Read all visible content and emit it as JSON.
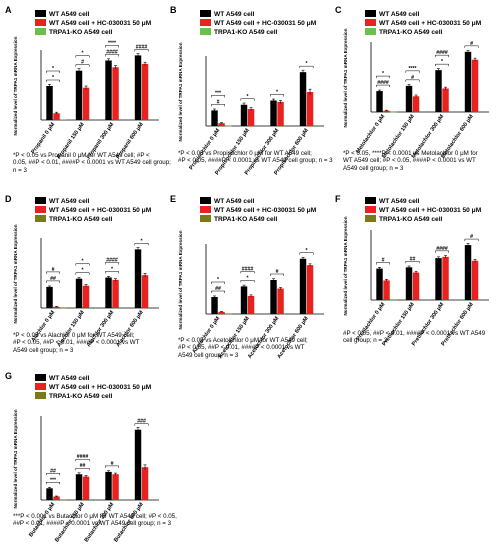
{
  "colors": {
    "wt": "#000000",
    "hc": "#e8231f",
    "ko": "#6cc04a",
    "ko_dark": "#7a7a1a"
  },
  "chart_data": [
    {
      "panel": "A",
      "type": "bar",
      "ylabel": "Normalized level of TRPA1 mRNA Expression",
      "categories": [
        "Propanil 0 μM",
        "Propanil 150 μM",
        "Propanil 300 μM",
        "Propanil 600 μM"
      ],
      "series": [
        {
          "name": "WT A549 cell",
          "color": "wt",
          "values": [
            1.0,
            1.45,
            1.75,
            1.9
          ],
          "errors": [
            0.05,
            0.06,
            0.05,
            0.05
          ]
        },
        {
          "name": "WT A549 cell + HC-030031 50 μM",
          "color": "hc",
          "values": [
            0.2,
            0.95,
            1.55,
            1.65
          ],
          "errors": [
            0.03,
            0.05,
            0.05,
            0.05
          ]
        },
        {
          "name": "TRPA1-KO A549 cell",
          "color": "ko",
          "values": [
            0.02,
            0,
            0,
            0
          ],
          "errors": [
            0,
            0,
            0,
            0
          ]
        }
      ],
      "ylim": [
        0,
        2.0
      ],
      "annotations": [
        "*",
        "#",
        "####",
        "####",
        "*",
        "*",
        "****"
      ],
      "caption": [
        "*P < 0.05 vs Propanil 0 μM for WT A549 cell; #P <",
        "0.05, ##P < 0.01, ####P < 0.0001 vs WT A549 cell group;",
        "n = 3"
      ]
    },
    {
      "panel": "B",
      "type": "bar",
      "ylabel": "Normalized level of TRPA1 mRNA Expression",
      "categories": [
        "Propisochlor 0 μM",
        "Propisochlor 150 μM",
        "Propisochlor 300 μM",
        "Propisochlor 600 μM"
      ],
      "series": [
        {
          "name": "WT A549 cell",
          "color": "wt",
          "values": [
            0.55,
            0.75,
            0.9,
            1.9
          ],
          "errors": [
            0.05,
            0.06,
            0.05,
            0.07
          ]
        },
        {
          "name": "WT A549 cell + HC-030031 50 μM",
          "color": "hc",
          "values": [
            0.1,
            0.6,
            0.85,
            1.2
          ],
          "errors": [
            0.02,
            0.05,
            0.05,
            0.1
          ]
        },
        {
          "name": "TRPA1-KO A549 cell",
          "color": "ko",
          "values": [
            0.01,
            0,
            0,
            0
          ],
          "errors": [
            0,
            0,
            0,
            0
          ]
        }
      ],
      "ylim": [
        0,
        2.4
      ],
      "annotations": [
        "#",
        "*",
        "*",
        "*",
        "***"
      ],
      "caption": [
        "*P < 0.05 vs Propisochlor 0 μM for WT A549 cell;",
        "#P < 0.05, ####P < 0.0001 vs WT A549 cell group; n = 3"
      ]
    },
    {
      "panel": "C",
      "type": "bar",
      "ylabel": "Normalized level of TRPA1 mRNA Expression",
      "categories": [
        "Metolachlor 0 μM",
        "Metolachlor 150 μM",
        "Metolachlor 300 μM",
        "Metolachlor 600 μM"
      ],
      "series": [
        {
          "name": "WT A549 cell",
          "color": "wt",
          "values": [
            0.8,
            1.0,
            1.6,
            2.3
          ],
          "errors": [
            0.04,
            0.05,
            0.06,
            0.05
          ]
        },
        {
          "name": "WT A549 cell + HC-030031 50 μM",
          "color": "hc",
          "values": [
            0.05,
            0.6,
            0.9,
            2.0
          ],
          "errors": [
            0.02,
            0.05,
            0.05,
            0.06
          ]
        },
        {
          "name": "TRPA1-KO A549 cell",
          "color": "ko",
          "values": [
            0.01,
            0,
            0,
            0
          ],
          "errors": [
            0,
            0,
            0,
            0
          ]
        }
      ],
      "ylim": [
        0,
        2.6
      ],
      "annotations": [
        "####",
        "#",
        "*",
        "#",
        "*",
        "****",
        "####"
      ],
      "caption": [
        "*P < 0.05, ****P < 0.0001 vs Metolachlor 0 μM for",
        "WT A549 cell; #P < 0.05, ####P < 0.0001 vs WT",
        "A549 cell group; n = 3"
      ]
    },
    {
      "panel": "D",
      "type": "bar",
      "ylabel": "Normalized level of TRPA1 mRNA Expression",
      "categories": [
        "Alachlor 0 μM",
        "Alachlor 150 μM",
        "Alachlor 300 μM",
        "Alachlor 600 μM"
      ],
      "series": [
        {
          "name": "WT A549 cell",
          "color": "wt",
          "values": [
            0.9,
            1.25,
            1.3,
            2.5
          ],
          "errors": [
            0.04,
            0.05,
            0.05,
            0.08
          ]
        },
        {
          "name": "WT A549 cell + HC-030031 50 μM",
          "color": "hc",
          "values": [
            0.05,
            0.95,
            1.2,
            1.4
          ],
          "errors": [
            0.02,
            0.05,
            0.05,
            0.08
          ]
        },
        {
          "name": "TRPA1-KO A549 cell",
          "color": "ko_dark",
          "values": [
            0.01,
            0,
            0,
            0
          ],
          "errors": [
            0,
            0,
            0,
            0
          ]
        }
      ],
      "ylim": [
        0,
        2.9
      ],
      "annotations": [
        "##",
        "*",
        "*",
        "*",
        "#",
        "*",
        "####"
      ],
      "caption": [
        "*P < 0.05 vs Alachlor 0 μM for WT A549 cell;",
        "#P < 0.05, ##P < 0.01, ####P < 0.0001 vs WT",
        "A549 cell group; n = 3"
      ]
    },
    {
      "panel": "E",
      "type": "bar",
      "ylabel": "Normalized level of TRPA1 mRNA Expression",
      "categories": [
        "Acetochlor 0 μM",
        "Acetochlor 150 μM",
        "Acetochlor 300 μM",
        "Acetochlor 600 μM"
      ],
      "series": [
        {
          "name": "WT A549 cell",
          "color": "wt",
          "values": [
            0.8,
            1.3,
            1.6,
            2.6
          ],
          "errors": [
            0.05,
            0.06,
            0.06,
            0.06
          ]
        },
        {
          "name": "WT A549 cell + HC-030031 50 μM",
          "color": "hc",
          "values": [
            0.1,
            0.85,
            1.2,
            2.3
          ],
          "errors": [
            0.02,
            0.05,
            0.05,
            0.06
          ]
        },
        {
          "name": "TRPA1-KO A549 cell",
          "color": "ko_dark",
          "values": [
            0.02,
            0,
            0,
            0
          ],
          "errors": [
            0,
            0,
            0,
            0
          ]
        }
      ],
      "ylim": [
        0,
        3.2
      ],
      "annotations": [
        "##",
        "*",
        "#",
        "*",
        "*",
        "####"
      ],
      "caption": [
        "*P < 0.05 vs Acetolchlor 0 μM for WT A549 cell;",
        "#P < 0.05, ##P < 0.01, ####P < 0.0001 vs WT",
        "A549 cell group; n = 3"
      ]
    },
    {
      "panel": "F",
      "type": "bar",
      "ylabel": "Normalized level of TRPA1 mRNA Expression",
      "categories": [
        "Pretilachlor 0 μM",
        "Pretilachlor 150 μM",
        "Pretilachlor 300 μM",
        "Pretilachlor 600 μM"
      ],
      "series": [
        {
          "name": "WT A549 cell",
          "color": "wt",
          "values": [
            1.2,
            1.25,
            1.6,
            2.1
          ],
          "errors": [
            0.05,
            0.05,
            0.05,
            0.06
          ]
        },
        {
          "name": "WT A549 cell + HC-030031 50 μM",
          "color": "hc",
          "values": [
            0.75,
            1.05,
            1.65,
            1.5
          ],
          "errors": [
            0.04,
            0.05,
            0.05,
            0.05
          ]
        },
        {
          "name": "TRPA1-KO A549 cell",
          "color": "ko_dark",
          "values": [
            0.01,
            0,
            0,
            0
          ],
          "errors": [
            0,
            0,
            0,
            0
          ]
        }
      ],
      "ylim": [
        0,
        2.6
      ],
      "annotations": [
        "#",
        "##",
        "####",
        "#"
      ],
      "caption": [
        "#P < 0.05, ##P < 0.01, ####P < 0.0001 vs WT A549",
        "cell group; n = 3"
      ]
    },
    {
      "panel": "G",
      "type": "bar",
      "ylabel": "Normalized level of TRPA1 mRNA Expression",
      "categories": [
        "Butachlor 0 μM",
        "Butachlor 150 μM",
        "Butachlor 300 μM",
        "Butachlor 600 μM"
      ],
      "series": [
        {
          "name": "WT A549 cell",
          "color": "wt",
          "values": [
            0.5,
            1.1,
            1.2,
            3.0
          ],
          "errors": [
            0.04,
            0.06,
            0.05,
            0.1
          ]
        },
        {
          "name": "WT A549 cell + HC-030031 50 μM",
          "color": "hc",
          "values": [
            0.15,
            1.0,
            1.1,
            1.4
          ],
          "errors": [
            0.02,
            0.05,
            0.05,
            0.1
          ]
        },
        {
          "name": "TRPA1-KO A549 cell",
          "color": "ko_dark",
          "values": [
            0.01,
            0,
            0,
            0
          ],
          "errors": [
            0,
            0,
            0,
            0
          ]
        }
      ],
      "ylim": [
        0,
        3.5
      ],
      "annotations": [
        "***",
        "##",
        "#",
        "###",
        "##",
        "####"
      ],
      "caption": [
        "***P < 0.001 vs Butachlor 0 μM for WT A549 cell; #P < 0.05,",
        "##P < 0.01, ####P < 0.0001 vs WT A549 cell group; n = 3"
      ]
    }
  ]
}
